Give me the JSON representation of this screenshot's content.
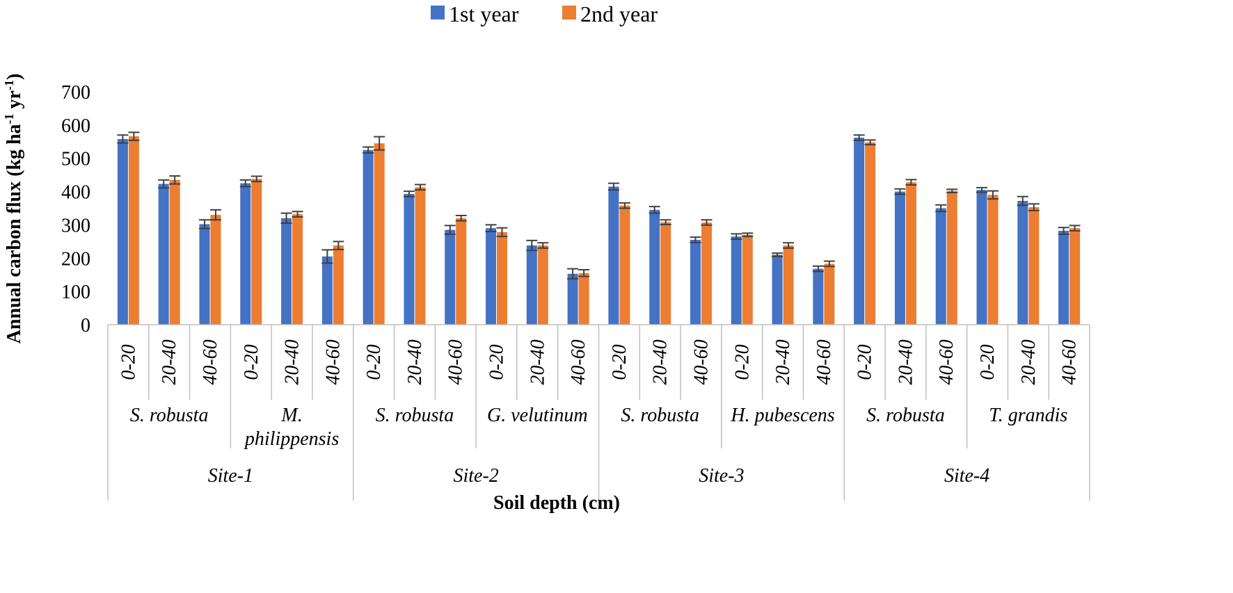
{
  "chart_data": {
    "type": "bar",
    "ylabel_parts": [
      "Annual carbon flux (kg ha",
      "-1",
      " yr",
      "-1",
      ")"
    ],
    "xlabel": "Soil depth (cm)",
    "ylim": [
      0,
      700
    ],
    "yticks": [
      0,
      100,
      200,
      300,
      400,
      500,
      600,
      700
    ],
    "grid": false,
    "legend_position": "top",
    "colors": {
      "1st year": "#4472c4",
      "2nd year": "#ed7d31",
      "error_bar": "#404040"
    },
    "categories": [
      {
        "site": "Site-1",
        "species": "S. robusta",
        "depth": "0-20"
      },
      {
        "site": "Site-1",
        "species": "S. robusta",
        "depth": "20-40"
      },
      {
        "site": "Site-1",
        "species": "S. robusta",
        "depth": "40-60"
      },
      {
        "site": "Site-1",
        "species": "M. philippensis",
        "depth": "0-20"
      },
      {
        "site": "Site-1",
        "species": "M. philippensis",
        "depth": "20-40"
      },
      {
        "site": "Site-1",
        "species": "M. philippensis",
        "depth": "40-60"
      },
      {
        "site": "Site-2",
        "species": "S. robusta",
        "depth": "0-20"
      },
      {
        "site": "Site-2",
        "species": "S. robusta",
        "depth": "20-40"
      },
      {
        "site": "Site-2",
        "species": "S. robusta",
        "depth": "40-60"
      },
      {
        "site": "Site-2",
        "species": "G. velutinum",
        "depth": "0-20"
      },
      {
        "site": "Site-2",
        "species": "G. velutinum",
        "depth": "20-40"
      },
      {
        "site": "Site-2",
        "species": "G. velutinum",
        "depth": "40-60"
      },
      {
        "site": "Site-3",
        "species": "S. robusta",
        "depth": "0-20"
      },
      {
        "site": "Site-3",
        "species": "S. robusta",
        "depth": "20-40"
      },
      {
        "site": "Site-3",
        "species": "S. robusta",
        "depth": "40-60"
      },
      {
        "site": "Site-3",
        "species": "H. pubescens",
        "depth": "0-20"
      },
      {
        "site": "Site-3",
        "species": "H. pubescens",
        "depth": "20-40"
      },
      {
        "site": "Site-3",
        "species": "H. pubescens",
        "depth": "40-60"
      },
      {
        "site": "Site-4",
        "species": "S. robusta",
        "depth": "0-20"
      },
      {
        "site": "Site-4",
        "species": "S. robusta",
        "depth": "20-40"
      },
      {
        "site": "Site-4",
        "species": "S. robusta",
        "depth": "40-60"
      },
      {
        "site": "Site-4",
        "species": "T. grandis",
        "depth": "0-20"
      },
      {
        "site": "Site-4",
        "species": "T. grandis",
        "depth": "20-40"
      },
      {
        "site": "Site-4",
        "species": "T. grandis",
        "depth": "40-60"
      }
    ],
    "species_groups": [
      {
        "lines": [
          "S. robusta"
        ]
      },
      {
        "lines": [
          "M.",
          "philippensis"
        ]
      },
      {
        "lines": [
          "S. robusta"
        ]
      },
      {
        "lines": [
          "G. velutinum"
        ]
      },
      {
        "lines": [
          "S. robusta"
        ]
      },
      {
        "lines": [
          "H. pubescens"
        ]
      },
      {
        "lines": [
          "S. robusta"
        ]
      },
      {
        "lines": [
          "T. grandis"
        ]
      }
    ],
    "site_groups": [
      "Site-1",
      "Site-2",
      "Site-3",
      "Site-4"
    ],
    "series": [
      {
        "name": "1st year",
        "values": [
          558,
          423,
          302,
          425,
          320,
          205,
          525,
          393,
          285,
          290,
          238,
          153,
          415,
          345,
          255,
          265,
          210,
          168,
          562,
          400,
          350,
          405,
          372,
          282
        ],
        "errors": [
          12,
          12,
          13,
          10,
          15,
          20,
          9,
          8,
          13,
          10,
          15,
          15,
          10,
          10,
          8,
          8,
          5,
          8,
          8,
          8,
          10,
          7,
          13,
          10
        ]
      },
      {
        "name": "2nd year",
        "values": [
          566,
          435,
          330,
          438,
          332,
          238,
          545,
          413,
          320,
          278,
          238,
          155,
          358,
          308,
          307,
          270,
          238,
          183,
          548,
          428,
          402,
          390,
          353,
          290
        ],
        "errors": [
          12,
          12,
          15,
          8,
          8,
          12,
          20,
          8,
          8,
          13,
          8,
          10,
          8,
          7,
          8,
          5,
          8,
          8,
          7,
          8,
          5,
          12,
          10,
          8
        ]
      }
    ]
  }
}
